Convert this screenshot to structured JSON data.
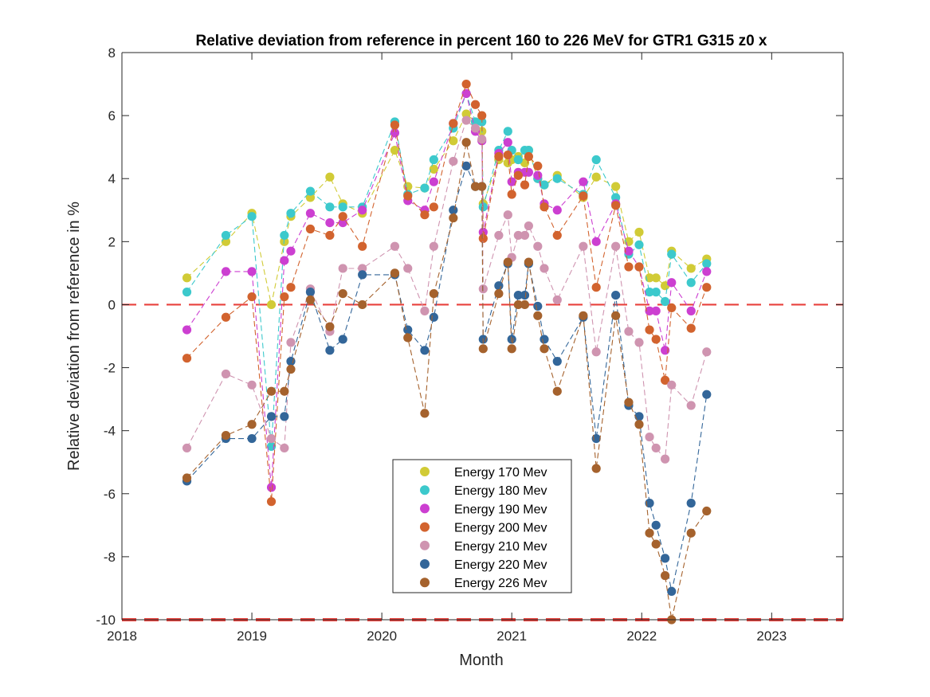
{
  "chart_data": {
    "type": "line",
    "title": "Relative deviation from reference in percent 160 to 226 MeV for GTR1 G315 z0 x",
    "xlabel": "Month",
    "ylabel": "Relative deviation from reference in %",
    "xlim": [
      2018,
      2023.55
    ],
    "ylim": [
      -10,
      8
    ],
    "xticks": [
      2018,
      2019,
      2020,
      2021,
      2022,
      2023
    ],
    "xtick_labels": [
      "2018",
      "2019",
      "2020",
      "2021",
      "2022",
      "2023"
    ],
    "yticks": [
      -10,
      -8,
      -6,
      -4,
      -2,
      0,
      2,
      4,
      6,
      8
    ],
    "ytick_labels": [
      "-10",
      "-8",
      "-6",
      "-4",
      "-2",
      "0",
      "2",
      "4",
      "6",
      "8"
    ],
    "reference_lines": [
      0,
      -10
    ],
    "reference_line_color": "#e8413c",
    "legend_position": "bottom-center",
    "grid": false,
    "x": [
      2018.5,
      2018.8,
      2019.0,
      2019.15,
      2019.25,
      2019.3,
      2019.45,
      2019.6,
      2019.7,
      2019.85,
      2020.1,
      2020.2,
      2020.33,
      2020.4,
      2020.55,
      2020.65,
      2020.72,
      2020.77,
      2020.78,
      2020.9,
      2020.97,
      2021.0,
      2021.05,
      2021.1,
      2021.13,
      2021.2,
      2021.25,
      2021.35,
      2021.55,
      2021.65,
      2021.8,
      2021.9,
      2021.98,
      2022.06,
      2022.11,
      2022.18,
      2022.23,
      2022.38,
      2022.5
    ],
    "series": [
      {
        "name": "Energy 170 Mev",
        "color": "#d1cb36",
        "values": [
          0.85,
          2.0,
          2.9,
          0.0,
          2.0,
          2.8,
          3.4,
          4.05,
          3.2,
          2.9,
          4.9,
          3.75,
          3.7,
          4.3,
          5.2,
          6.05,
          5.8,
          5.5,
          3.2,
          4.6,
          4.5,
          4.6,
          4.7,
          4.5,
          4.9,
          4.0,
          3.8,
          4.1,
          3.4,
          4.05,
          3.75,
          2.0,
          2.3,
          0.85,
          0.85,
          0.6,
          1.7,
          1.15,
          1.45
        ]
      },
      {
        "name": "Energy 180 Mev",
        "color": "#3cc9cc",
        "values": [
          0.4,
          2.2,
          2.8,
          -4.5,
          2.2,
          2.9,
          3.6,
          3.1,
          3.1,
          3.1,
          5.8,
          3.5,
          3.7,
          4.6,
          5.6,
          6.7,
          5.8,
          5.8,
          3.1,
          4.9,
          5.5,
          4.9,
          4.6,
          4.9,
          4.9,
          4.0,
          3.8,
          4.0,
          3.5,
          4.6,
          3.4,
          1.6,
          1.9,
          0.4,
          0.4,
          0.1,
          1.6,
          0.7,
          1.3
        ]
      },
      {
        "name": "Energy 190 Mev",
        "color": "#cc3fd1",
        "values": [
          -0.8,
          1.05,
          1.05,
          -5.8,
          1.4,
          1.7,
          2.9,
          2.6,
          2.6,
          3.0,
          5.45,
          3.3,
          3.0,
          3.9,
          5.75,
          6.7,
          5.5,
          5.2,
          2.3,
          4.8,
          5.15,
          3.9,
          4.2,
          4.2,
          4.2,
          4.1,
          3.2,
          3.0,
          3.9,
          2.0,
          3.2,
          1.7,
          1.2,
          -0.2,
          -0.2,
          -1.45,
          0.7,
          -0.2,
          1.05
        ]
      },
      {
        "name": "Energy 200 Mev",
        "color": "#d2632e",
        "values": [
          -1.7,
          -0.4,
          0.25,
          -6.25,
          0.25,
          0.55,
          2.4,
          2.2,
          2.8,
          1.85,
          5.7,
          3.45,
          2.85,
          3.1,
          5.75,
          7.0,
          6.35,
          6.0,
          2.1,
          4.7,
          4.75,
          3.5,
          4.1,
          3.8,
          4.7,
          4.4,
          3.1,
          2.2,
          3.45,
          0.55,
          3.15,
          1.2,
          1.2,
          -0.8,
          -1.1,
          -2.4,
          -0.1,
          -0.75,
          0.55
        ]
      },
      {
        "name": "Energy 210 Mev",
        "color": "#cf94b0",
        "values": [
          -4.55,
          -2.2,
          -2.55,
          -4.25,
          -4.55,
          -1.2,
          0.5,
          -0.85,
          1.15,
          1.15,
          1.85,
          1.15,
          -0.2,
          1.85,
          4.55,
          5.85,
          5.6,
          5.25,
          0.5,
          2.2,
          2.85,
          1.5,
          2.2,
          2.2,
          2.5,
          1.85,
          1.15,
          0.15,
          1.85,
          -1.5,
          1.85,
          -0.85,
          -1.2,
          -4.2,
          -4.55,
          -4.9,
          -2.55,
          -3.2,
          -1.5
        ]
      },
      {
        "name": "Energy 220 Mev",
        "color": "#336699",
        "values": [
          -5.6,
          -4.25,
          -4.25,
          -3.55,
          -3.55,
          -1.8,
          0.4,
          -1.45,
          -1.1,
          0.95,
          0.95,
          -0.8,
          -1.45,
          -0.4,
          3.0,
          4.4,
          3.75,
          3.75,
          -1.1,
          0.6,
          1.3,
          -1.1,
          0.3,
          0.3,
          1.3,
          -0.05,
          -1.1,
          -1.8,
          -0.4,
          -4.25,
          0.3,
          -3.2,
          -3.55,
          -6.3,
          -7.0,
          -8.05,
          -9.1,
          -6.3,
          -2.85
        ]
      },
      {
        "name": "Energy 226 Mev",
        "color": "#a5622d",
        "values": [
          -5.5,
          -4.15,
          -3.8,
          -2.75,
          -2.75,
          -2.05,
          0.15,
          -0.7,
          0.35,
          0.0,
          1.0,
          -1.05,
          -3.45,
          0.35,
          2.75,
          5.15,
          3.75,
          3.75,
          -1.4,
          0.35,
          1.35,
          -1.4,
          0.0,
          0.0,
          1.35,
          -0.35,
          -1.4,
          -2.75,
          -0.35,
          -5.2,
          -0.35,
          -3.1,
          -3.8,
          -7.25,
          -7.6,
          -8.6,
          -10.0,
          -7.25,
          -6.55
        ]
      }
    ]
  }
}
